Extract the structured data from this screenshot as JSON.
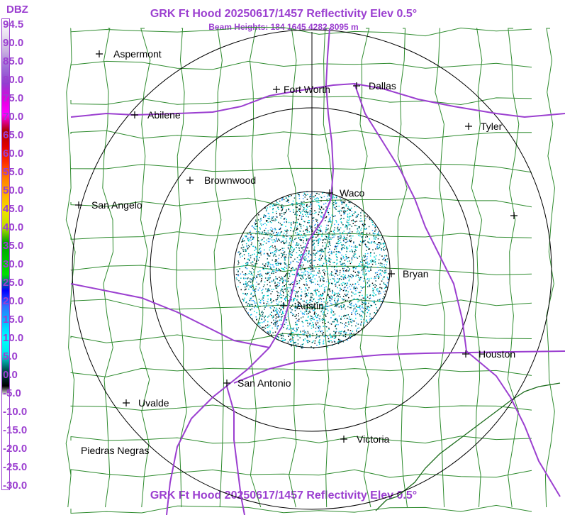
{
  "header": {
    "title": "GRK Ft Hood 20250617/1457 Reflectivity Elev 0.5°",
    "subtitle": "Beam Heights: 184 1645 4282 8095 m"
  },
  "footer": {
    "title": "GRK Ft Hood 20250617/1457 Reflectivity Elev 0.5°"
  },
  "legend": {
    "unit": "DBZ",
    "ticks": [
      "94.5",
      "90.0",
      "85.0",
      "80.0",
      "75.0",
      "70.0",
      "65.0",
      "60.0",
      "55.0",
      "50.0",
      "45.0",
      "40.0",
      "35.0",
      "30.0",
      "25.0",
      "20.0",
      "15.0",
      "10.0",
      "5.0",
      "0.0",
      "-5.0",
      "-10.0",
      "-15.0",
      "-20.0",
      "-25.0",
      "-30.0"
    ],
    "colors": [
      "#ffffff",
      "#e8e0f0",
      "#c8b0e0",
      "#a070d8",
      "#9040d0",
      "#e000e0",
      "#ff00ff",
      "#b00000",
      "#e00000",
      "#ff3000",
      "#ff8000",
      "#ffb000",
      "#f0e000",
      "#c0e000",
      "#00a000",
      "#00c000",
      "#00e000",
      "#0000ff",
      "#3070ff",
      "#00c0ff",
      "#00ffff",
      "#00e8e8",
      "#005050",
      "#000000"
    ]
  },
  "cities": [
    {
      "name": "Aspermont"
    },
    {
      "name": "Abilene"
    },
    {
      "name": "Fort Worth"
    },
    {
      "name": "Dallas"
    },
    {
      "name": "Tyler"
    },
    {
      "name": "Brownwood"
    },
    {
      "name": "San Angelo"
    },
    {
      "name": "Waco"
    },
    {
      "name": "Bryan"
    },
    {
      "name": "Austin"
    },
    {
      "name": "Houston"
    },
    {
      "name": "San Antonio"
    },
    {
      "name": "Uvalde"
    },
    {
      "name": "Piedras Negras"
    },
    {
      "name": "Victoria"
    },
    {
      "name": ""
    }
  ],
  "colors": {
    "title": "#9b3fd0",
    "county_lines": "#2e8b2e",
    "highways": "#9b3fd0",
    "range_rings": "#000000"
  }
}
